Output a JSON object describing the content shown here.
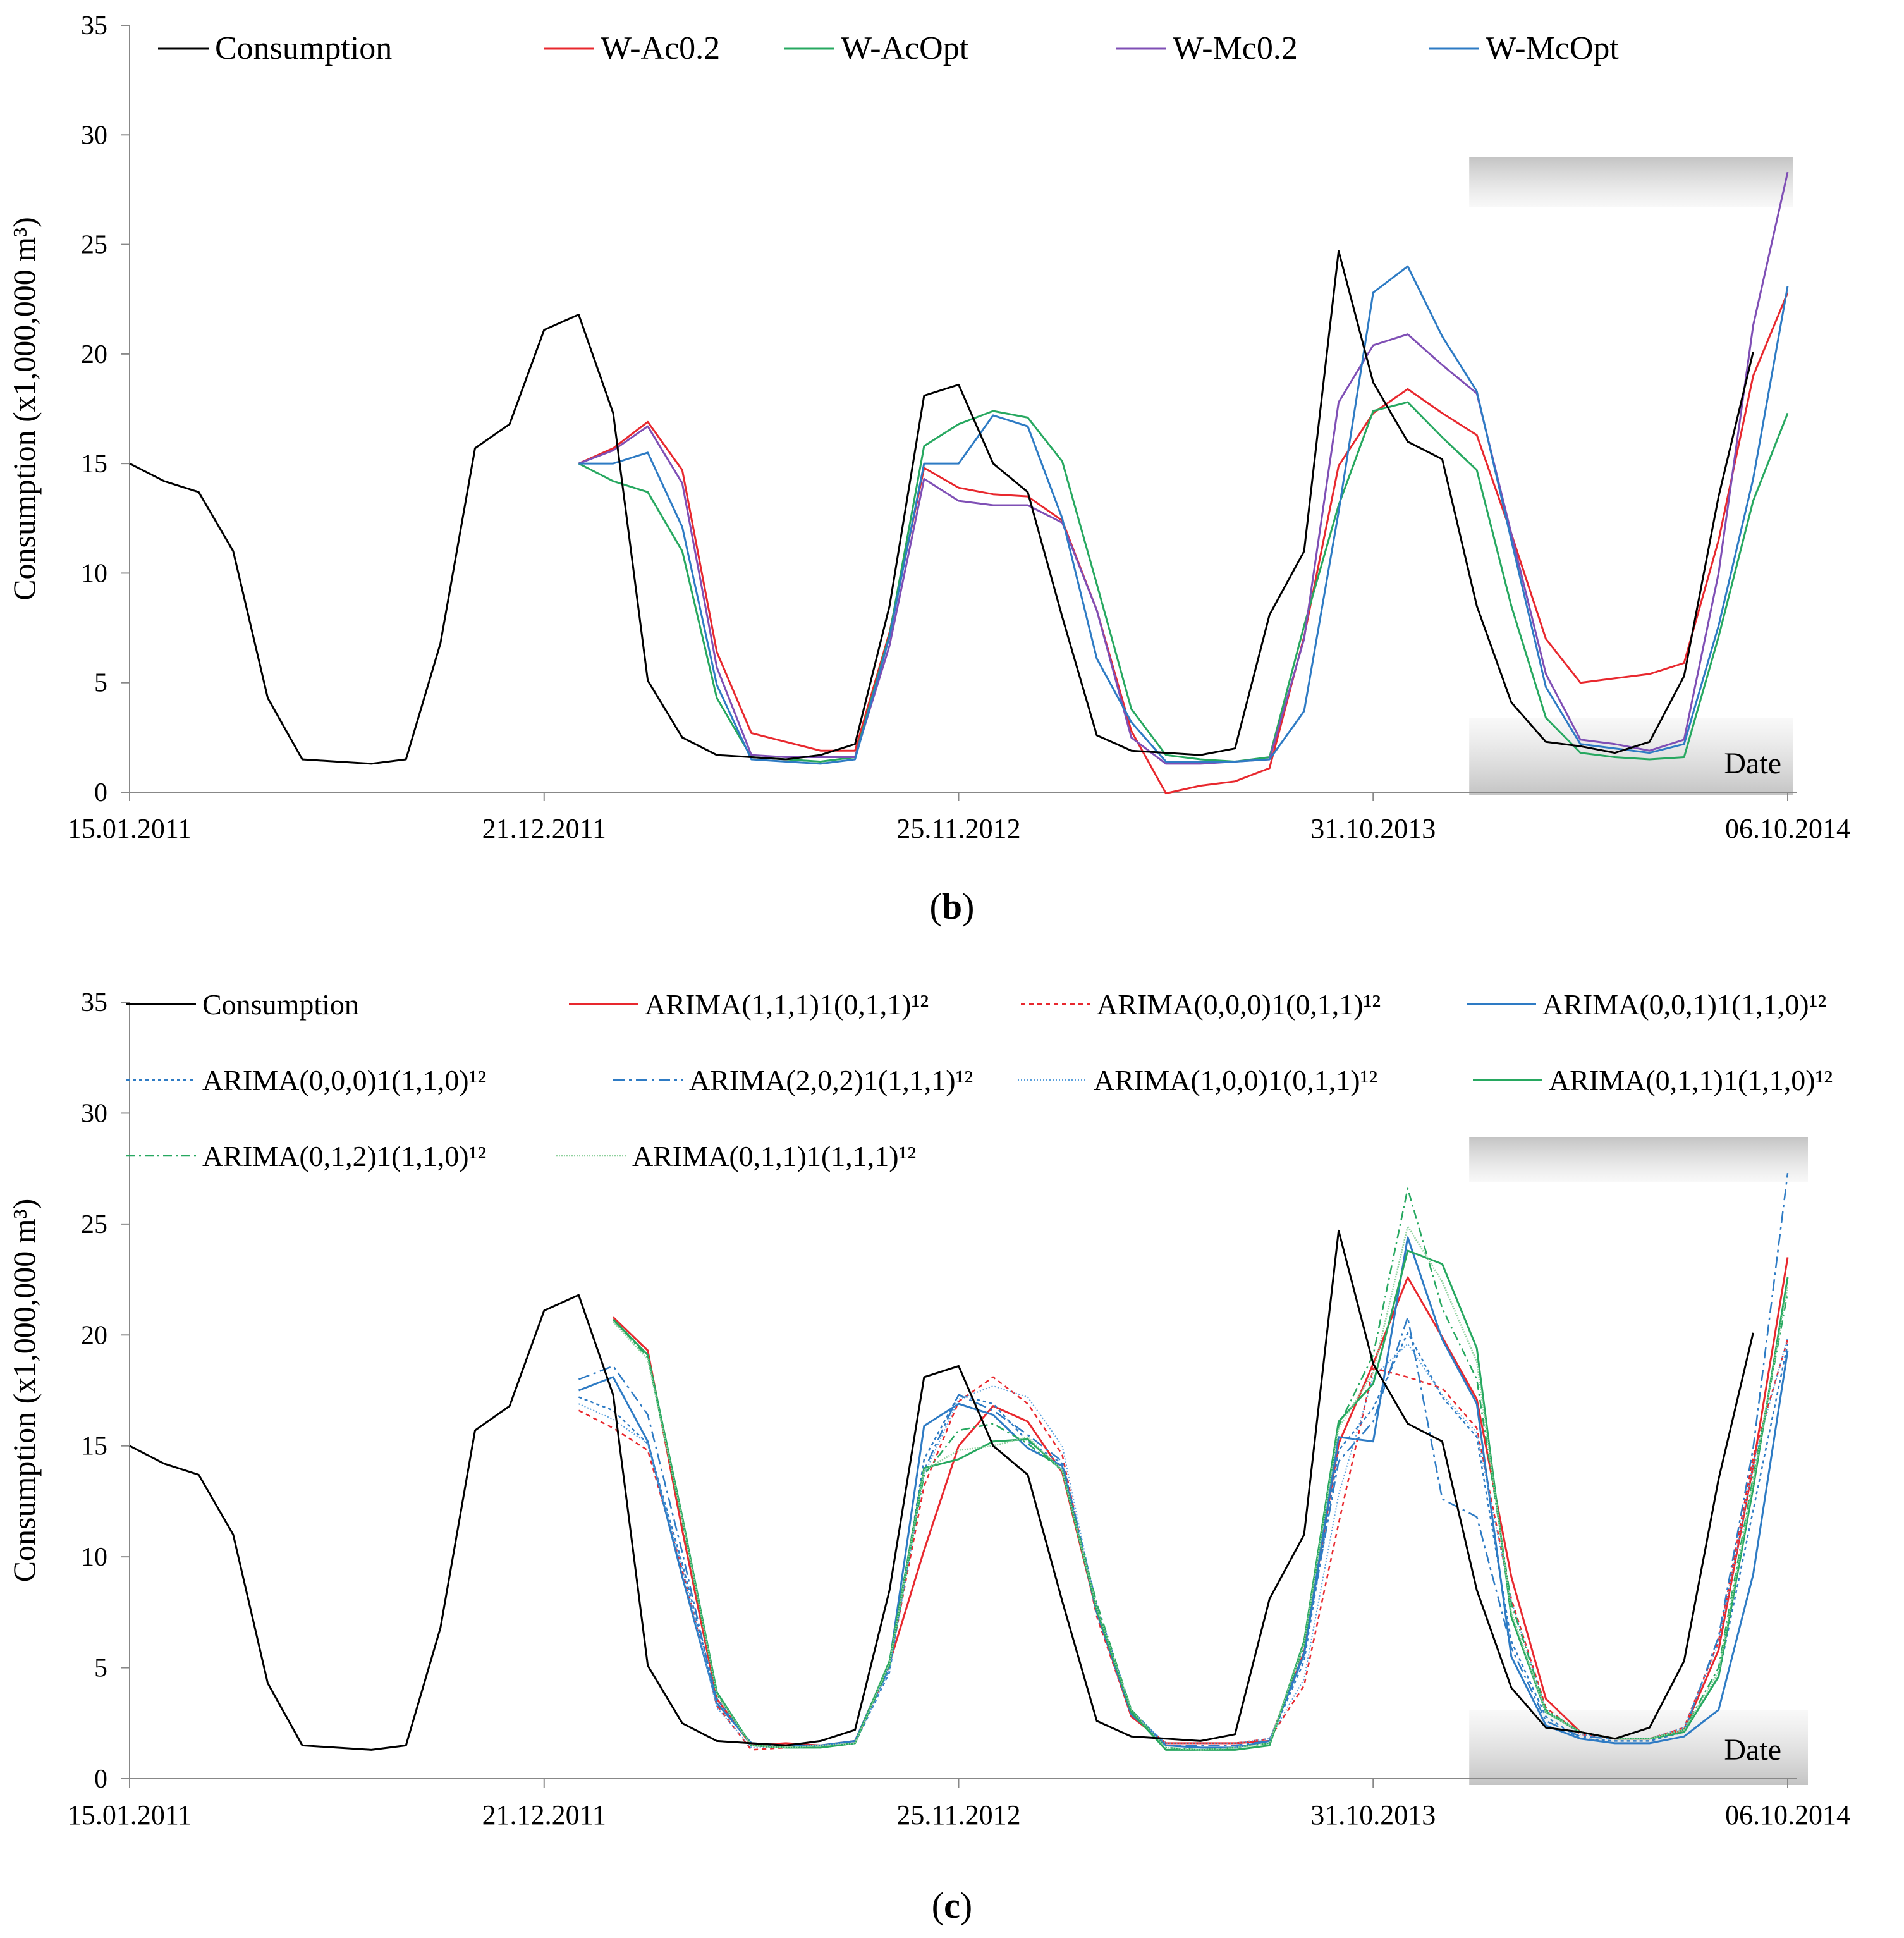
{
  "chart_data": [
    {
      "id": "b",
      "type": "line",
      "caption": "b",
      "ylabel": "Consumption (x1,000,000 m³)",
      "xlabel": "Date",
      "ylim": [
        0,
        35
      ],
      "yticks": [
        0,
        5,
        10,
        15,
        20,
        25,
        30,
        35
      ],
      "x_count": 49,
      "xticks": [
        {
          "index": 0,
          "label": "15.01.2011"
        },
        {
          "index": 12,
          "label": "21.12.2011"
        },
        {
          "index": 24,
          "label": "25.11.2012"
        },
        {
          "index": 36,
          "label": "31.10.2013"
        },
        {
          "index": 48,
          "label": "06.10.2014"
        }
      ],
      "forecast_shade_from": 39,
      "legend_rows": [
        [
          0,
          1,
          2,
          3,
          4
        ]
      ],
      "series": [
        {
          "name": "Consumption",
          "color": "#000000",
          "dash": "",
          "width": 3,
          "start": 0,
          "values": [
            15,
            14.2,
            13.7,
            11,
            4.3,
            1.5,
            1.4,
            1.3,
            1.5,
            6.8,
            15.7,
            16.8,
            21.1,
            21.8,
            17.3,
            5.1,
            2.5,
            1.7,
            1.6,
            1.5,
            1.7,
            2.2,
            8.5,
            18.1,
            18.6,
            15,
            13.7,
            8,
            2.6,
            1.9,
            1.8,
            1.7,
            2,
            8.1,
            11,
            24.7,
            18.7,
            16,
            15.2,
            8.5,
            4.1,
            2.3,
            2.1,
            1.8,
            2.3,
            5.3,
            13.5,
            20.1
          ]
        },
        {
          "name": "W-Ac0.2",
          "color": "#e8282e",
          "dash": "",
          "width": 3,
          "start": 13,
          "values": [
            15,
            15.7,
            16.9,
            14.7,
            6.4,
            2.7,
            2.3,
            1.9,
            1.9,
            7.3,
            14.8,
            13.9,
            13.6,
            13.5,
            12.4,
            8.3,
            2.8,
            -0.05,
            0.3,
            0.5,
            1.1,
            7.1,
            14.9,
            17.3,
            18.4,
            17.3,
            16.3,
            11.8,
            7,
            5,
            5.2,
            5.4,
            5.9,
            11.5,
            19,
            22.8
          ]
        },
        {
          "name": "W-AcOpt",
          "color": "#27a860",
          "dash": "",
          "width": 3,
          "start": 13,
          "values": [
            15,
            14.2,
            13.7,
            11,
            4.3,
            1.6,
            1.5,
            1.4,
            1.6,
            7.2,
            15.8,
            16.8,
            17.4,
            17.1,
            15.1,
            9.5,
            3.8,
            1.7,
            1.5,
            1.4,
            1.6,
            7.6,
            13.1,
            17.4,
            17.8,
            16.2,
            14.7,
            8.5,
            3.4,
            1.8,
            1.6,
            1.5,
            1.6,
            7.1,
            13.3,
            17.3
          ]
        },
        {
          "name": "W-Mc0.2",
          "color": "#7f4fb5",
          "dash": "",
          "width": 3,
          "start": 13,
          "values": [
            15,
            15.6,
            16.7,
            14.1,
            5.7,
            1.7,
            1.6,
            1.6,
            1.6,
            6.7,
            14.3,
            13.3,
            13.1,
            13.1,
            12.3,
            8.3,
            2.5,
            1.3,
            1.3,
            1.4,
            1.5,
            7,
            17.8,
            20.4,
            20.9,
            19.5,
            18.2,
            11.8,
            5.4,
            2.4,
            2.2,
            1.9,
            2.4,
            10,
            21.3,
            28.3
          ]
        },
        {
          "name": "W-McOpt",
          "color": "#2e7bc4",
          "dash": "",
          "width": 3,
          "start": 13,
          "values": [
            15,
            15,
            15.5,
            12.1,
            4.9,
            1.5,
            1.4,
            1.3,
            1.5,
            7.1,
            15,
            15,
            17.2,
            16.7,
            12.5,
            6.1,
            3.2,
            1.4,
            1.4,
            1.4,
            1.5,
            3.7,
            12.8,
            22.8,
            24,
            20.8,
            18.3,
            11.5,
            4.8,
            2.2,
            2,
            1.8,
            2.2,
            7.6,
            14.3,
            23.1
          ]
        }
      ]
    },
    {
      "id": "c",
      "type": "line",
      "caption": "c",
      "ylabel": "Consumption (x1,000,000 m³)",
      "xlabel": "Date",
      "ylim": [
        0,
        35
      ],
      "yticks": [
        0,
        5,
        10,
        15,
        20,
        25,
        30,
        35
      ],
      "x_count": 49,
      "xticks": [
        {
          "index": 0,
          "label": "15.01.2011"
        },
        {
          "index": 12,
          "label": "21.12.2011"
        },
        {
          "index": 24,
          "label": "25.11.2012"
        },
        {
          "index": 36,
          "label": "31.10.2013"
        },
        {
          "index": 48,
          "label": "06.10.2014"
        }
      ],
      "forecast_shade_from": 39,
      "legend_rows": [
        [
          0,
          1,
          2,
          3
        ],
        [
          4,
          5,
          6,
          7
        ],
        [
          8,
          9
        ]
      ],
      "series": [
        {
          "name": "Consumption",
          "color": "#000000",
          "dash": "",
          "width": 3,
          "start": 0,
          "values": [
            15,
            14.2,
            13.7,
            11,
            4.3,
            1.5,
            1.4,
            1.3,
            1.5,
            6.8,
            15.7,
            16.8,
            21.1,
            21.8,
            17.3,
            5.1,
            2.5,
            1.7,
            1.6,
            1.5,
            1.7,
            2.2,
            8.5,
            18.1,
            18.6,
            15,
            13.7,
            8,
            2.6,
            1.9,
            1.8,
            1.7,
            2,
            8.1,
            11,
            24.7,
            18.7,
            16,
            15.2,
            8.5,
            4.1,
            2.3,
            2.1,
            1.8,
            2.3,
            5.3,
            13.5,
            20.1
          ]
        },
        {
          "name": "ARIMA(1,1,1)1(0,1,1)¹²",
          "color": "#e8282e",
          "dash": "",
          "width": 3,
          "start": 14,
          "values": [
            20.8,
            19.3,
            11.2,
            3.6,
            1.5,
            1.6,
            1.5,
            1.7,
            5.2,
            10.3,
            15,
            16.8,
            16.1,
            13.8,
            7.5,
            2.8,
            1.6,
            1.6,
            1.6,
            1.7,
            5.7,
            15.1,
            18.7,
            22.6,
            19.9,
            17.1,
            9.1,
            3.6,
            2.1,
            1.8,
            1.8,
            2.2,
            5.8,
            14.1,
            23.5
          ]
        },
        {
          "name": "ARIMA(0,0,0)1(0,1,1)¹²",
          "color": "#e8282e",
          "dash": "7,6",
          "width": 2.5,
          "start": 13,
          "values": [
            16.6,
            15.8,
            14.8,
            9.4,
            3.3,
            1.3,
            1.4,
            1.4,
            1.6,
            5.1,
            13.2,
            17,
            18.1,
            16.9,
            14.6,
            7.3,
            2.8,
            1.6,
            1.6,
            1.6,
            1.8,
            4.2,
            11.5,
            18.5,
            18.1,
            17.6,
            15.8,
            8.1,
            3.2,
            2,
            1.8,
            1.8,
            2.3,
            6.2,
            14.5,
            19.8
          ]
        },
        {
          "name": "ARIMA(0,0,1)1(1,1,0)¹²",
          "color": "#2e7bc4",
          "dash": "",
          "width": 3,
          "start": 13,
          "values": [
            17.5,
            18.1,
            15.2,
            9.1,
            3.4,
            1.6,
            1.5,
            1.5,
            1.7,
            5.2,
            15.9,
            16.9,
            16.4,
            14.9,
            14.1,
            7.5,
            2.9,
            1.5,
            1.4,
            1.4,
            1.7,
            5.6,
            15.4,
            15.2,
            24.4,
            19.8,
            16.9,
            5.5,
            2.4,
            1.8,
            1.6,
            1.6,
            1.9,
            3.1,
            9.2,
            19.3
          ]
        },
        {
          "name": "ARIMA(0,0,0)1(1,1,0)¹²",
          "color": "#2e7bc4",
          "dash": "5,5",
          "width": 2.5,
          "start": 13,
          "values": [
            17.2,
            16.6,
            15.1,
            9.7,
            3.6,
            1.5,
            1.5,
            1.4,
            1.6,
            4.8,
            14.4,
            17.3,
            16.9,
            15.2,
            14.2,
            7.6,
            3.1,
            1.5,
            1.4,
            1.4,
            1.7,
            5.3,
            14.8,
            16.7,
            20.1,
            17.2,
            15.4,
            6.2,
            2.8,
            1.8,
            1.7,
            1.7,
            2.1,
            4.6,
            12.1,
            19.6
          ]
        },
        {
          "name": "ARIMA(2,0,2)1(1,1,1)¹²",
          "color": "#2e7bc4",
          "dash": "18,7,4,7",
          "width": 2.5,
          "start": 13,
          "values": [
            18,
            18.6,
            16.4,
            10.2,
            3.4,
            1.6,
            1.5,
            1.5,
            1.7,
            5,
            13.9,
            17.3,
            16.6,
            15.5,
            14.3,
            7.8,
            3.1,
            1.5,
            1.5,
            1.5,
            1.7,
            5.7,
            14.3,
            16.1,
            20.8,
            12.6,
            11.8,
            5.9,
            2.6,
            1.9,
            1.8,
            1.8,
            2.1,
            6.4,
            14.9,
            27.3
          ]
        },
        {
          "name": "ARIMA(1,0,0)1(0,1,1)¹²",
          "color": "#5aa0dc",
          "dash": "2,3",
          "width": 2,
          "start": 13,
          "values": [
            16.9,
            16.2,
            15.1,
            9.5,
            3.2,
            1.4,
            1.4,
            1.4,
            1.6,
            4.9,
            13.7,
            17.1,
            17.7,
            17.2,
            15,
            7.6,
            3,
            1.6,
            1.6,
            1.6,
            1.8,
            4.5,
            12.8,
            18.1,
            19.6,
            17.3,
            15.6,
            8,
            3.1,
            2,
            1.8,
            1.8,
            2.3,
            6.1,
            14.2,
            19.9
          ]
        },
        {
          "name": "ARIMA(0,1,1)1(1,1,0)¹²",
          "color": "#27a860",
          "dash": "",
          "width": 3,
          "start": 14,
          "values": [
            20.7,
            19.1,
            11.8,
            3.9,
            1.5,
            1.4,
            1.4,
            1.6,
            5.3,
            14,
            14.4,
            15.2,
            15.3,
            13.9,
            7.6,
            3,
            1.3,
            1.3,
            1.3,
            1.5,
            6.2,
            16.1,
            17.8,
            23.8,
            23.2,
            19.4,
            7.3,
            3,
            2.1,
            1.8,
            1.8,
            2.1,
            4.6,
            13.1,
            22.6
          ]
        },
        {
          "name": "ARIMA(0,1,2)1(1,1,0)¹²",
          "color": "#27a860",
          "dash": "14,6,3,6",
          "width": 2.5,
          "start": 14,
          "values": [
            20.7,
            19,
            11.6,
            3.8,
            1.5,
            1.4,
            1.4,
            1.6,
            5.1,
            13.7,
            15.7,
            16,
            15.1,
            13.9,
            7.9,
            3.1,
            1.4,
            1.3,
            1.4,
            1.6,
            6,
            15.9,
            19.1,
            26.6,
            21.2,
            18,
            7.9,
            3.1,
            2.1,
            1.8,
            1.8,
            2.2,
            5,
            13.6,
            21.9
          ]
        },
        {
          "name": "ARIMA(0,1,1)1(1,1,1)¹²",
          "color": "#8fd19e",
          "dash": "2,2",
          "width": 2.5,
          "start": 14,
          "values": [
            20.6,
            18.9,
            11.7,
            3.8,
            1.5,
            1.4,
            1.5,
            1.6,
            5.2,
            13.9,
            14.8,
            15,
            15.4,
            13.9,
            7.7,
            3.1,
            1.4,
            1.3,
            1.4,
            1.6,
            6.1,
            15.8,
            18.3,
            24.9,
            22.4,
            18.8,
            7.5,
            3,
            2.1,
            1.8,
            1.8,
            2.2,
            4.8,
            13.4,
            22.2
          ]
        }
      ]
    }
  ]
}
